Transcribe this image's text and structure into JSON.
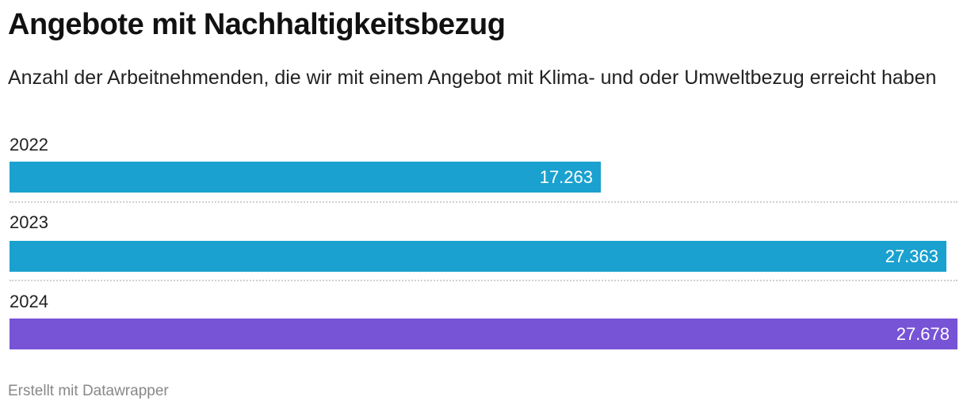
{
  "header": {
    "title": "Angebote mit Nachhaltigkeitsbezug",
    "subtitle": "Anzahl der Arbeitnehmenden, die wir mit einem Angebot mit Klima- und oder Umweltbezug erreicht haben"
  },
  "rows": [
    {
      "label": "2022",
      "value_label": "17.263",
      "color": "#1aa1cf"
    },
    {
      "label": "2023",
      "value_label": "27.363",
      "color": "#1aa1cf"
    },
    {
      "label": "2024",
      "value_label": "27.678",
      "color": "#7753d6"
    }
  ],
  "footer": {
    "credit": "Erstellt mit Datawrapper"
  },
  "chart_data": {
    "type": "bar",
    "orientation": "horizontal",
    "title": "Angebote mit Nachhaltigkeitsbezug",
    "subtitle": "Anzahl der Arbeitnehmenden, die wir mit einem Angebot mit Klima- und oder Umweltbezug erreicht haben",
    "categories": [
      "2022",
      "2023",
      "2024"
    ],
    "values": [
      17263,
      27363,
      27678
    ],
    "value_labels": [
      "17.263",
      "27.363",
      "27.678"
    ],
    "colors": [
      "#1aa1cf",
      "#1aa1cf",
      "#7753d6"
    ],
    "xlabel": "",
    "ylabel": "",
    "xlim": [
      0,
      27678
    ],
    "grid": false,
    "legend": "none",
    "source_note": "Erstellt mit Datawrapper"
  }
}
